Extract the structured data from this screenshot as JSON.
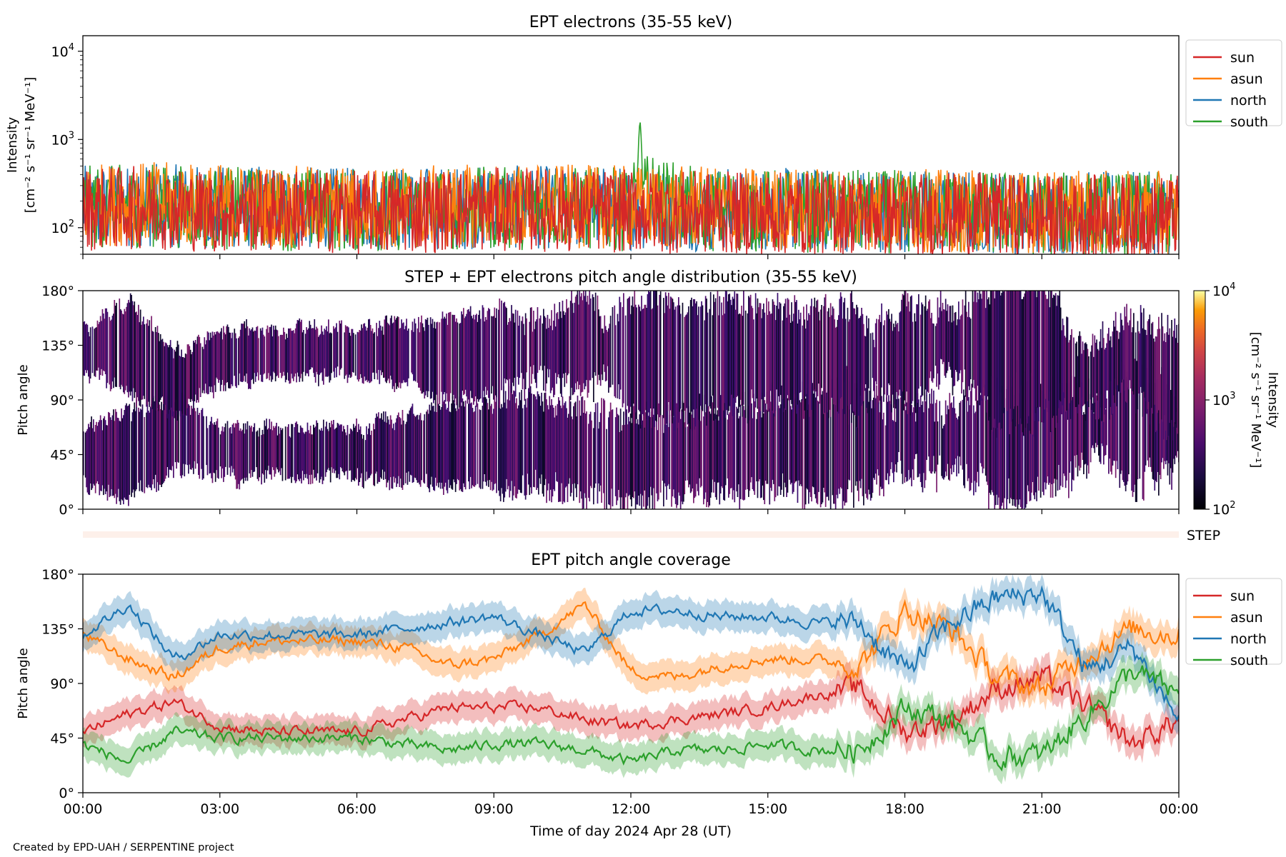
{
  "colors": {
    "sun": "#d62728",
    "asun": "#ff7f0e",
    "north": "#1f77b4",
    "south": "#2ca02c",
    "step_bar": "#fdf0ea"
  },
  "footer": "Created by EPD-UAH / SERPENTINE project",
  "xaxis": {
    "label": "Time of day 2024 Apr 28 (UT)",
    "ticks": [
      "00:00",
      "03:00",
      "06:00",
      "09:00",
      "12:00",
      "15:00",
      "18:00",
      "21:00",
      "00:00"
    ],
    "range_hours": [
      0,
      24
    ]
  },
  "panel1": {
    "title": "EPT electrons (35-55 keV)",
    "ylabel_line1": "Intensity",
    "ylabel_line2": "[cm⁻² s⁻¹ sr⁻¹ MeV⁻¹]",
    "yticks": [
      {
        "base": "10",
        "exp": "4",
        "value": 10000
      },
      {
        "base": "10",
        "exp": "3",
        "value": 1000
      },
      {
        "base": "10",
        "exp": "2",
        "value": 100
      }
    ],
    "legend": [
      "sun",
      "asun",
      "north",
      "south"
    ]
  },
  "panel2": {
    "title": "STEP + EPT electrons pitch angle distribution (35-55 keV)",
    "ylabel": "Pitch angle",
    "yticks": [
      "180°",
      "135°",
      "90°",
      "45°",
      "0°"
    ],
    "colorbar": {
      "label_line1": "Intensity",
      "label_line2": "[cm⁻² s⁻¹ sr⁻¹ MeV⁻¹]",
      "ticks": [
        {
          "base": "10",
          "exp": "4"
        },
        {
          "base": "10",
          "exp": "3"
        },
        {
          "base": "10",
          "exp": "2"
        }
      ]
    }
  },
  "step_label": "STEP",
  "panel3": {
    "title": "EPT pitch angle coverage",
    "ylabel": "Pitch angle",
    "yticks": [
      "180°",
      "135°",
      "90°",
      "45°",
      "0°"
    ],
    "legend": [
      "sun",
      "asun",
      "north",
      "south"
    ]
  },
  "chart_data": [
    {
      "type": "line",
      "title": "EPT electrons (35-55 keV)",
      "xlabel": "Time of day 2024 Apr 28 (UT)",
      "ylabel": "Intensity [cm⁻² s⁻¹ sr⁻¹ MeV⁻¹]",
      "yscale": "log",
      "ylim": [
        50,
        15000
      ],
      "x_hours": [
        0,
        1.5,
        3,
        4.5,
        6,
        7.5,
        9,
        10.5,
        12,
        12.2,
        13.5,
        15,
        16.5,
        18,
        19.5,
        21,
        22.5,
        24
      ],
      "series": [
        {
          "name": "sun",
          "values": [
            180,
            190,
            170,
            175,
            165,
            170,
            180,
            175,
            170,
            170,
            165,
            160,
            165,
            155,
            160,
            150,
            150,
            150
          ]
        },
        {
          "name": "asun",
          "values": [
            200,
            210,
            200,
            190,
            185,
            190,
            200,
            195,
            190,
            190,
            185,
            180,
            180,
            175,
            170,
            170,
            165,
            165
          ]
        },
        {
          "name": "north",
          "values": [
            190,
            200,
            190,
            185,
            180,
            185,
            190,
            190,
            185,
            185,
            180,
            180,
            175,
            175,
            170,
            165,
            165,
            160
          ]
        },
        {
          "name": "south",
          "values": [
            190,
            200,
            185,
            180,
            175,
            180,
            185,
            185,
            180,
            1500,
            175,
            175,
            170,
            170,
            165,
            160,
            160,
            160
          ]
        }
      ],
      "legend": "top-right (outside)",
      "grid": false
    },
    {
      "type": "heatmap",
      "title": "STEP + EPT electrons pitch angle distribution (35-55 keV)",
      "ylabel": "Pitch angle",
      "ylim": [
        0,
        180
      ],
      "colorscale": "inferno (log)",
      "clim": [
        100,
        10000
      ],
      "note": "intensities mostly near 10^2–10^2.5 (dark purple); white gaps where no coverage"
    },
    {
      "type": "line",
      "title": "EPT pitch angle coverage",
      "xlabel": "Time of day 2024 Apr 28 (UT)",
      "ylabel": "Pitch angle",
      "ylim": [
        0,
        180
      ],
      "x_hours": [
        0,
        1,
        2,
        3,
        4,
        5,
        6,
        7,
        8,
        9,
        10,
        11,
        12,
        13,
        14,
        15,
        16,
        17,
        18,
        19,
        20,
        21,
        22,
        23,
        24
      ],
      "series": [
        {
          "name": "sun",
          "values": [
            50,
            65,
            75,
            55,
            50,
            50,
            50,
            60,
            70,
            70,
            70,
            60,
            55,
            60,
            65,
            70,
            80,
            85,
            50,
            60,
            85,
            95,
            70,
            40,
            60
          ]
        },
        {
          "name": "asun",
          "values": [
            130,
            110,
            95,
            120,
            125,
            125,
            125,
            120,
            105,
            110,
            130,
            155,
            100,
            95,
            105,
            110,
            110,
            105,
            150,
            135,
            95,
            85,
            115,
            135,
            130
          ]
        },
        {
          "name": "north",
          "values": [
            130,
            155,
            110,
            130,
            130,
            130,
            130,
            135,
            140,
            145,
            130,
            115,
            150,
            150,
            145,
            145,
            140,
            140,
            100,
            140,
            160,
            165,
            100,
            120,
            60
          ]
        },
        {
          "name": "south",
          "values": [
            40,
            25,
            50,
            45,
            45,
            45,
            45,
            40,
            35,
            40,
            40,
            35,
            25,
            35,
            35,
            40,
            35,
            35,
            70,
            60,
            30,
            30,
            65,
            100,
            80
          ]
        }
      ],
      "legend": "top-right (outside)",
      "grid": false
    }
  ]
}
